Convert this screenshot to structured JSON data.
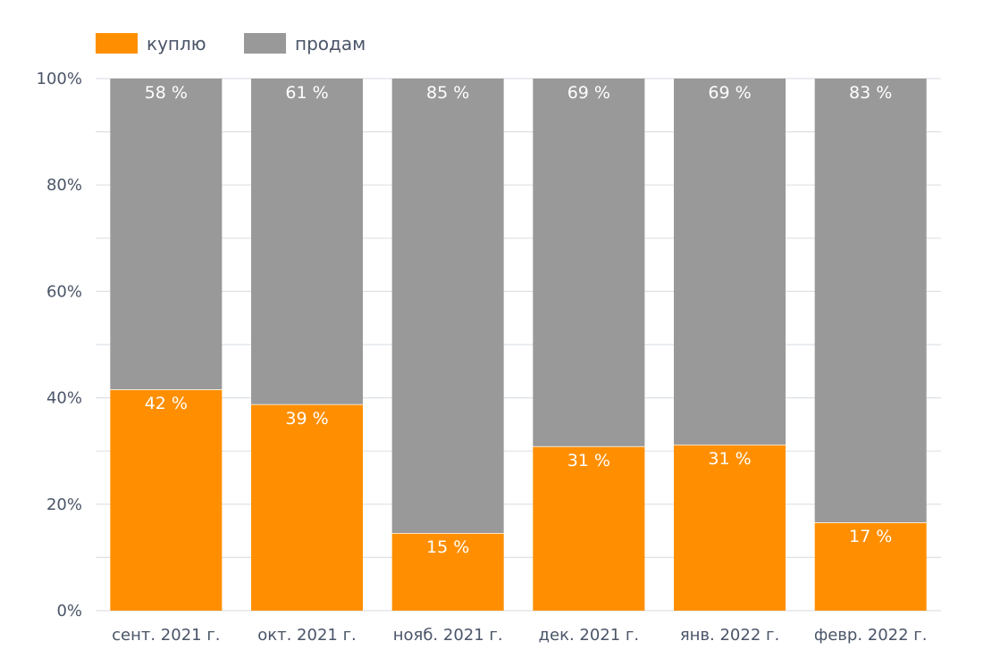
{
  "chart_data": {
    "type": "bar",
    "stacked": true,
    "categories": [
      "сент. 2021 г.",
      "окт. 2021 г.",
      "нояб. 2021 г.",
      "дек. 2021 г.",
      "янв. 2022 г.",
      "февр. 2022 г."
    ],
    "series": [
      {
        "name": "куплю",
        "color": "#ff8f00",
        "values": [
          41.6,
          38.8,
          14.6,
          30.9,
          31.2,
          16.6
        ],
        "labels": [
          "42 %",
          "39 %",
          "15 %",
          "31 %",
          "31 %",
          "17 %"
        ]
      },
      {
        "name": "продам",
        "color": "#999999",
        "values": [
          58.4,
          61.2,
          85.4,
          69.1,
          68.8,
          83.4
        ],
        "labels": [
          "58 %",
          "61 %",
          "85 %",
          "69 %",
          "69 %",
          "83 %"
        ]
      }
    ],
    "yticks": [
      "0%",
      "20%",
      "40%",
      "60%",
      "80%",
      "100%"
    ],
    "ylim": [
      0,
      100
    ],
    "grid": true,
    "legend": "top-left"
  }
}
